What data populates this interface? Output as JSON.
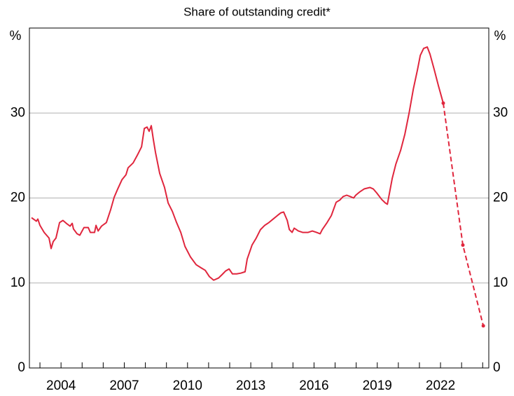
{
  "chart_data": {
    "type": "line",
    "subtitle": "Share of outstanding credit*",
    "ylabel": "%",
    "y2label": "%",
    "xlim": [
      2002.5,
      2024.29
    ],
    "xticks": [
      2004,
      2007,
      2010,
      2013,
      2016,
      2019,
      2022
    ],
    "xminor_ticks": [
      2003,
      2004,
      2005,
      2006,
      2007,
      2008,
      2009,
      2010,
      2011,
      2012,
      2013,
      2014,
      2015,
      2016,
      2017,
      2018,
      2019,
      2020,
      2021,
      2022,
      2023,
      2024
    ],
    "ylim": [
      0,
      40
    ],
    "yticks": [
      0,
      10,
      20,
      30
    ],
    "y2lim": [
      0,
      40
    ],
    "y2ticks": [
      0,
      10,
      20,
      30
    ],
    "grid": true,
    "series": [
      {
        "color": "#e0263d",
        "dashed": false,
        "x": [
          2002.6,
          2002.83,
          2002.9,
          2003.0,
          2003.2,
          2003.43,
          2003.53,
          2003.63,
          2003.76,
          2003.93,
          2004.09,
          2004.29,
          2004.43,
          2004.53,
          2004.59,
          2004.76,
          2004.89,
          2005.09,
          2005.29,
          2005.39,
          2005.59,
          2005.66,
          2005.76,
          2005.92,
          2006.15,
          2006.35,
          2006.52,
          2006.69,
          2006.89,
          2007.08,
          2007.18,
          2007.42,
          2007.62,
          2007.82,
          2007.95,
          2008.08,
          2008.18,
          2008.28,
          2008.38,
          2008.48,
          2008.68,
          2008.91,
          2009.08,
          2009.28,
          2009.48,
          2009.68,
          2009.88,
          2010.14,
          2010.41,
          2010.67,
          2010.84,
          2011.04,
          2011.24,
          2011.47,
          2011.64,
          2011.8,
          2011.97,
          2012.13,
          2012.33,
          2012.53,
          2012.73,
          2012.83,
          2013.06,
          2013.26,
          2013.46,
          2013.66,
          2013.86,
          2014.06,
          2014.26,
          2014.43,
          2014.56,
          2014.73,
          2014.83,
          2014.96,
          2015.06,
          2015.26,
          2015.46,
          2015.72,
          2015.92,
          2016.12,
          2016.29,
          2016.39,
          2016.62,
          2016.82,
          2017.05,
          2017.22,
          2017.38,
          2017.55,
          2017.72,
          2017.88,
          2017.98,
          2018.18,
          2018.38,
          2018.65,
          2018.81,
          2018.98,
          2019.21,
          2019.38,
          2019.48,
          2019.71,
          2019.88,
          2020.11,
          2020.31,
          2020.51,
          2020.71,
          2020.91,
          2021.04,
          2021.2,
          2021.37,
          2021.5,
          2021.7,
          2021.9,
          2022.13
        ],
        "values": [
          17.69,
          17.27,
          17.52,
          16.78,
          15.95,
          15.29,
          14.05,
          14.88,
          15.29,
          17.11,
          17.36,
          16.94,
          16.69,
          17.02,
          16.36,
          15.79,
          15.62,
          16.53,
          16.53,
          15.95,
          15.95,
          16.78,
          16.12,
          16.69,
          17.11,
          18.6,
          20.08,
          21.07,
          22.15,
          22.73,
          23.55,
          24.13,
          25.04,
          26.03,
          28.18,
          28.35,
          27.85,
          28.51,
          26.86,
          25.37,
          22.89,
          21.24,
          19.42,
          18.43,
          17.11,
          15.95,
          14.3,
          13.06,
          12.15,
          11.74,
          11.49,
          10.74,
          10.33,
          10.58,
          10.99,
          11.4,
          11.65,
          11.07,
          11.07,
          11.16,
          11.32,
          12.81,
          14.46,
          15.29,
          16.28,
          16.78,
          17.11,
          17.52,
          17.93,
          18.26,
          18.35,
          17.36,
          16.28,
          15.95,
          16.45,
          16.12,
          15.95,
          15.95,
          16.12,
          15.95,
          15.79,
          16.28,
          17.11,
          17.93,
          19.5,
          19.75,
          20.17,
          20.33,
          20.17,
          20.0,
          20.33,
          20.74,
          21.07,
          21.24,
          21.07,
          20.58,
          19.83,
          19.42,
          19.26,
          22.31,
          23.97,
          25.62,
          27.52,
          30.0,
          32.81,
          35.12,
          36.78,
          37.6,
          37.77,
          36.94,
          35.12,
          33.22,
          31.16
        ]
      },
      {
        "color": "#e0263d",
        "dashed": true,
        "markers": true,
        "x": [
          2022.13,
          2023.06,
          2024.03
        ],
        "values": [
          31.16,
          14.46,
          4.96
        ]
      }
    ]
  }
}
